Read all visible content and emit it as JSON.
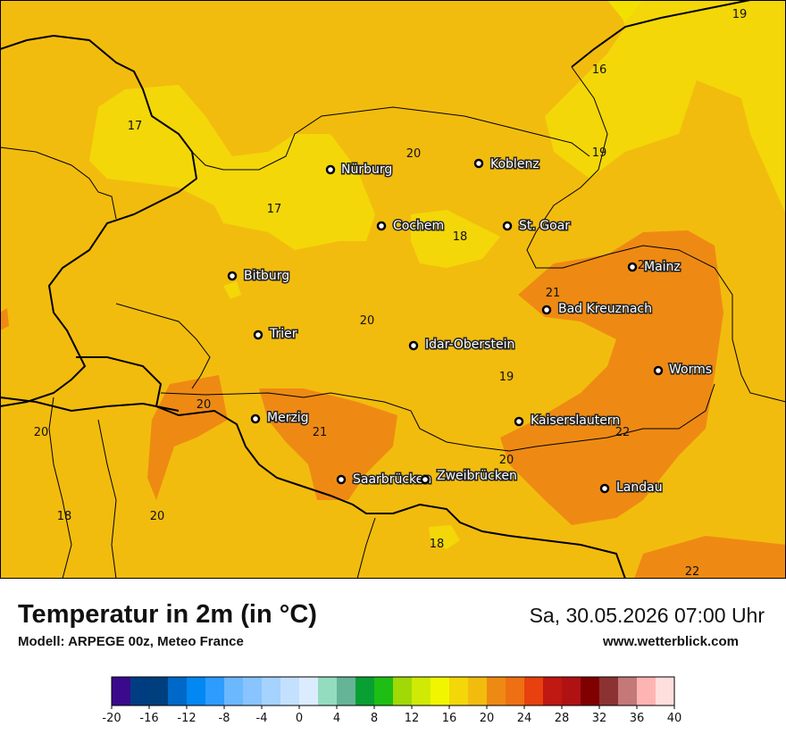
{
  "header": {
    "title": "Temperatur in 2m (in °C)",
    "model": "Modell: ARPEGE 00z, Meteo France",
    "datetime": "Sa, 30.05.2026 07:00 Uhr",
    "site": "www.wetterblick.com"
  },
  "map": {
    "colors": {
      "t16": "#f3d709",
      "t18": "#f2bc0e",
      "t20": "#f2bc0e",
      "t22": "#ee8a13"
    },
    "cities": [
      {
        "name": "Nürburg"
      },
      {
        "name": "Koblenz"
      },
      {
        "name": "Cochem"
      },
      {
        "name": "St. Goar"
      },
      {
        "name": "Mainz"
      },
      {
        "name": "Bitburg"
      },
      {
        "name": "Bad Kreuznach"
      },
      {
        "name": "Trier"
      },
      {
        "name": "Idar-Oberstein"
      },
      {
        "name": "Worms"
      },
      {
        "name": "Merzig"
      },
      {
        "name": "Kaiserslautern"
      },
      {
        "name": "Saarbrücken"
      },
      {
        "name": "Zweibrücken"
      },
      {
        "name": "Landau"
      }
    ],
    "values": [
      "19",
      "16",
      "17",
      "20",
      "19",
      "17",
      "18",
      "21",
      "21",
      "20",
      "19",
      "20",
      "20",
      "21",
      "22",
      "20",
      "18",
      "20",
      "18",
      "22"
    ]
  },
  "legend": {
    "colors": [
      "#3b0a8c",
      "#003c82",
      "#003f7e",
      "#0068c8",
      "#0387f2",
      "#2e9cff",
      "#6bb8ff",
      "#88c4ff",
      "#a6d2ff",
      "#c4e0ff",
      "#dcecff",
      "#94dcc0",
      "#66b498",
      "#08a032",
      "#1ebe14",
      "#a0d906",
      "#d0ea05",
      "#f2f500",
      "#f3d709",
      "#f2bc0e",
      "#ee8a13",
      "#ee7012",
      "#e8400e",
      "#c01812",
      "#b01214",
      "#800000",
      "#8c3232",
      "#c47878",
      "#ffb4b4",
      "#ffdede"
    ],
    "ticks": [
      "-20",
      "-16",
      "-12",
      "-8",
      "-4",
      "0",
      "4",
      "8",
      "12",
      "16",
      "20",
      "24",
      "28",
      "32",
      "36",
      "40"
    ]
  }
}
